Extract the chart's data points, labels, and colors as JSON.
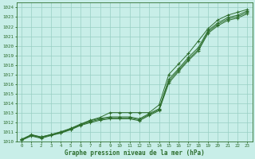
{
  "bg_color": "#c8eee8",
  "grid_color": "#98cfc4",
  "line_color": "#2d6e2d",
  "xlabel": "Graphe pression niveau de la mer (hPa)",
  "ylim": [
    1010,
    1024.5
  ],
  "xlim": [
    -0.5,
    23.5
  ],
  "yticks": [
    1010,
    1011,
    1012,
    1013,
    1014,
    1015,
    1016,
    1017,
    1018,
    1019,
    1020,
    1021,
    1022,
    1023,
    1024
  ],
  "xticks": [
    0,
    1,
    2,
    3,
    4,
    5,
    6,
    7,
    8,
    9,
    10,
    11,
    12,
    13,
    14,
    15,
    16,
    17,
    18,
    19,
    20,
    21,
    22,
    23
  ],
  "series": [
    [
      1010.2,
      1010.7,
      1010.45,
      1010.7,
      1011.0,
      1011.35,
      1011.8,
      1012.2,
      1012.5,
      1013.0,
      1013.0,
      1013.0,
      1013.0,
      1013.0,
      1013.8,
      1017.0,
      1018.1,
      1019.2,
      1020.5,
      1021.8,
      1022.7,
      1023.2,
      1023.5,
      1023.8
    ],
    [
      1010.2,
      1010.65,
      1010.45,
      1010.7,
      1010.95,
      1011.3,
      1011.75,
      1012.15,
      1012.4,
      1012.55,
      1012.55,
      1012.55,
      1012.35,
      1012.9,
      1013.4,
      1016.5,
      1017.6,
      1018.8,
      1019.8,
      1021.6,
      1022.4,
      1022.95,
      1023.2,
      1023.65
    ],
    [
      1010.15,
      1010.6,
      1010.38,
      1010.65,
      1010.9,
      1011.25,
      1011.7,
      1012.05,
      1012.3,
      1012.45,
      1012.45,
      1012.45,
      1012.25,
      1012.8,
      1013.3,
      1016.3,
      1017.45,
      1018.6,
      1019.6,
      1021.45,
      1022.25,
      1022.8,
      1023.05,
      1023.5
    ],
    [
      1010.1,
      1010.55,
      1010.3,
      1010.6,
      1010.85,
      1011.2,
      1011.65,
      1011.95,
      1012.2,
      1012.35,
      1012.35,
      1012.35,
      1012.15,
      1012.7,
      1013.2,
      1016.1,
      1017.3,
      1018.45,
      1019.45,
      1021.3,
      1022.1,
      1022.65,
      1022.9,
      1023.35
    ]
  ]
}
